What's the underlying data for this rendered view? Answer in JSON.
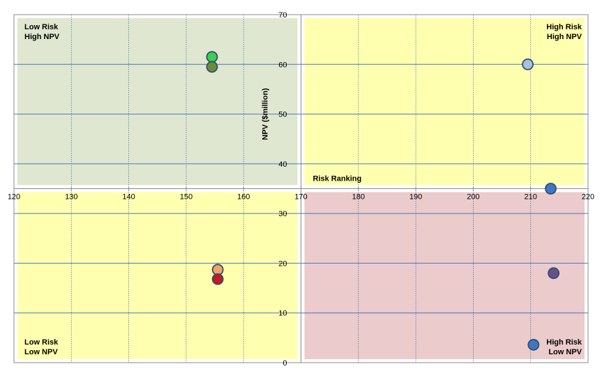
{
  "chart_data": {
    "type": "scatter",
    "title": "",
    "xlabel": "Risk Ranking",
    "ylabel": "NPV ($million)",
    "xlim": [
      120,
      220
    ],
    "ylim": [
      0,
      70
    ],
    "x_ticks": [
      "120",
      "130",
      "140",
      "150",
      "160",
      "170",
      "180",
      "190",
      "200",
      "210",
      "220"
    ],
    "y_ticks": [
      "0",
      "10",
      "20",
      "30",
      "40",
      "50",
      "60",
      "70"
    ],
    "grid": true,
    "crossover": {
      "x": 170,
      "y": 35
    },
    "quadrants": [
      {
        "name": "low-risk-high-npv",
        "lines": [
          "Low Risk",
          "High NPV"
        ],
        "color": "#e0e7d0",
        "x": [
          120,
          170
        ],
        "y": [
          35,
          70
        ]
      },
      {
        "name": "high-risk-high-npv",
        "lines": [
          "High Risk",
          "High NPV"
        ],
        "color": "#ffffb0",
        "x": [
          170,
          220
        ],
        "y": [
          35,
          70
        ]
      },
      {
        "name": "low-risk-low-npv",
        "lines": [
          "Low Risk",
          "Low NPV"
        ],
        "color": "#ffffb0",
        "x": [
          120,
          170
        ],
        "y": [
          0,
          35
        ]
      },
      {
        "name": "high-risk-low-npv",
        "lines": [
          "High Risk",
          "Low NPV"
        ],
        "color": "#ebcbcb",
        "x": [
          170,
          220
        ],
        "y": [
          0,
          35
        ]
      }
    ],
    "points": [
      {
        "x": 154.5,
        "y": 61.5,
        "color": "#3ccf4e"
      },
      {
        "x": 154.5,
        "y": 59.5,
        "color": "#6b8c3a"
      },
      {
        "x": 209.5,
        "y": 60.0,
        "color": "#a9c0e0"
      },
      {
        "x": 213.5,
        "y": 35.0,
        "color": "#3f78c2"
      },
      {
        "x": 155.5,
        "y": 18.7,
        "color": "#f4a06a"
      },
      {
        "x": 155.5,
        "y": 16.8,
        "color": "#c51820"
      },
      {
        "x": 214.0,
        "y": 18.0,
        "color": "#6b4e8a"
      },
      {
        "x": 210.5,
        "y": 3.6,
        "color": "#3f78c2"
      }
    ]
  }
}
